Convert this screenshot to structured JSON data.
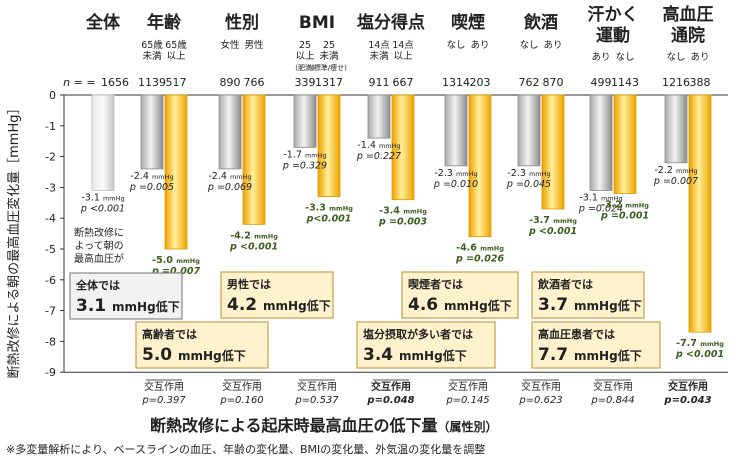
{
  "chart_data": {
    "type": "bar",
    "title": "断熱改修による起床時最高血圧の低下量",
    "title_suffix": "（属性別）",
    "ylabel": "断熱改修による朝の最高血圧変化量［mmHg］",
    "ylim": [
      -9,
      0
    ],
    "yticks": [
      0,
      -1,
      -2,
      -3,
      -4,
      -5,
      -6,
      -7,
      -8,
      -9
    ],
    "grid": false,
    "colors": {
      "reference": "#c9c9c9",
      "low": "#8c8c8c",
      "high": "#f2a900",
      "note_border": "#c8a04a",
      "note_fill": "#fff2cc",
      "total_fill": "#f2f2f2"
    },
    "n_prefix": "n = ",
    "groups": [
      {
        "name": "全体",
        "sub": [],
        "n": [
          "1656"
        ],
        "bars": [
          {
            "value": -3.1,
            "kind": "reference",
            "label": [
              "-3.1 mmHg",
              "p <0.001"
            ]
          }
        ],
        "interaction": []
      },
      {
        "name": "年齢",
        "sub": [
          "65歳|未満",
          "65歳|以上"
        ],
        "n": [
          "1139",
          "517"
        ],
        "bars": [
          {
            "value": -2.4,
            "kind": "low",
            "label": [
              "-2.4 mmHg",
              "p =0.005"
            ]
          },
          {
            "value": -5.0,
            "kind": "high",
            "label": [
              "-5.0 mmHg",
              "p =0.007"
            ]
          }
        ],
        "interaction": [
          "交互作用",
          "p=0.397"
        ]
      },
      {
        "name": "性別",
        "sub": [
          "女性",
          "男性"
        ],
        "n": [
          "890",
          "766"
        ],
        "bars": [
          {
            "value": -2.4,
            "kind": "low",
            "label": [
              "-2.4 mmHg",
              "p =0.069"
            ]
          },
          {
            "value": -4.2,
            "kind": "high",
            "label": [
              "-4.2 mmHg",
              "p <0.001"
            ]
          }
        ],
        "interaction": [
          "交互作用",
          "p=0.160"
        ]
      },
      {
        "name": "BMI",
        "sub": [
          "25|以上|(肥満)",
          "25|未満|(標準/痩せ)"
        ],
        "n": [
          "339",
          "1317"
        ],
        "bars": [
          {
            "value": -1.7,
            "kind": "low",
            "label": [
              "-1.7 mmHg",
              "p =0.329"
            ]
          },
          {
            "value": -3.3,
            "kind": "high",
            "label": [
              "-3.3 mmHg",
              "p<0.001"
            ]
          }
        ],
        "interaction": [
          "交互作用",
          "p=0.537"
        ]
      },
      {
        "name": "塩分得点",
        "sub": [
          "14点|未満",
          "14点|以上"
        ],
        "n": [
          "911",
          "667"
        ],
        "bars": [
          {
            "value": -1.4,
            "kind": "low",
            "label": [
              "-1.4 mmHg",
              "p =0.227"
            ]
          },
          {
            "value": -3.4,
            "kind": "high",
            "label": [
              "-3.4 mmHg",
              "p =0.003"
            ]
          }
        ],
        "interaction": [
          "交互作用",
          "p=0.048"
        ]
      },
      {
        "name": "喫煙",
        "sub": [
          "なし",
          "あり"
        ],
        "n": [
          "1314",
          "203"
        ],
        "bars": [
          {
            "value": -2.3,
            "kind": "low",
            "label": [
              "-2.3 mmHg",
              "p =0.010"
            ]
          },
          {
            "value": -4.6,
            "kind": "high",
            "label": [
              "-4.6 mmHg",
              "p =0.026"
            ]
          }
        ],
        "interaction": [
          "交互作用",
          "p=0.145"
        ]
      },
      {
        "name": "飲酒",
        "sub": [
          "なし",
          "あり"
        ],
        "n": [
          "762",
          "870"
        ],
        "bars": [
          {
            "value": -2.3,
            "kind": "low",
            "label": [
              "-2.3 mmHg",
              "p =0.045"
            ]
          },
          {
            "value": -3.7,
            "kind": "high",
            "label": [
              "-3.7 mmHg",
              "p <0.001"
            ]
          }
        ],
        "interaction": [
          "交互作用",
          "p=0.623"
        ]
      },
      {
        "name": "汗かく|運動",
        "sub": [
          "あり",
          "なし"
        ],
        "n": [
          "499",
          "1143"
        ],
        "bars": [
          {
            "value": -3.1,
            "kind": "low",
            "label": [
              "-3.1 mmHg",
              "p =0.024"
            ]
          },
          {
            "value": -3.2,
            "kind": "high",
            "label": [
              "-3.2 mmHg",
              "p =0.001"
            ]
          }
        ],
        "interaction": [
          "交互作用",
          "p=0.844"
        ]
      },
      {
        "name": "高血圧|通院",
        "sub": [
          "なし",
          "あり"
        ],
        "n": [
          "1216",
          "388"
        ],
        "bars": [
          {
            "value": -2.2,
            "kind": "low",
            "label": [
              "-2.2 mmHg",
              "p =0.007"
            ]
          },
          {
            "value": -7.7,
            "kind": "high",
            "label": [
              "-7.7 mmHg",
              "p <0.001"
            ]
          }
        ],
        "interaction": [
          "交互作用",
          "p=0.043"
        ]
      }
    ],
    "notes": [
      {
        "id": "total",
        "lines": [
          "全体では",
          "3.1 mmHg低下"
        ],
        "style": "total"
      },
      {
        "id": "elderly",
        "lines": [
          "高齢者では",
          "5.0 mmHg低下"
        ],
        "style": "note"
      },
      {
        "id": "male",
        "lines": [
          "男性では",
          "4.2 mmHg低下"
        ],
        "style": "note"
      },
      {
        "id": "salt",
        "lines": [
          "塩分摂取が多い者では",
          "3.4 mmHg低下"
        ],
        "style": "note"
      },
      {
        "id": "smoker",
        "lines": [
          "喫煙者では",
          "4.6 mmHg低下"
        ],
        "style": "note"
      },
      {
        "id": "drinker",
        "lines": [
          "飲酒者では",
          "3.7 mmHg低下"
        ],
        "style": "note"
      },
      {
        "id": "hypertension",
        "lines": [
          "高血圧患者では",
          "7.7 mmHg低下"
        ],
        "style": "note"
      }
    ],
    "total_annotation": [
      "断熱改修に",
      "よって朝の",
      "最高血圧が"
    ]
  },
  "footnote": "※多変量解析により、ベースラインの血圧、年齢の変化量、BMIの変化量、外気温の変化量を調整"
}
